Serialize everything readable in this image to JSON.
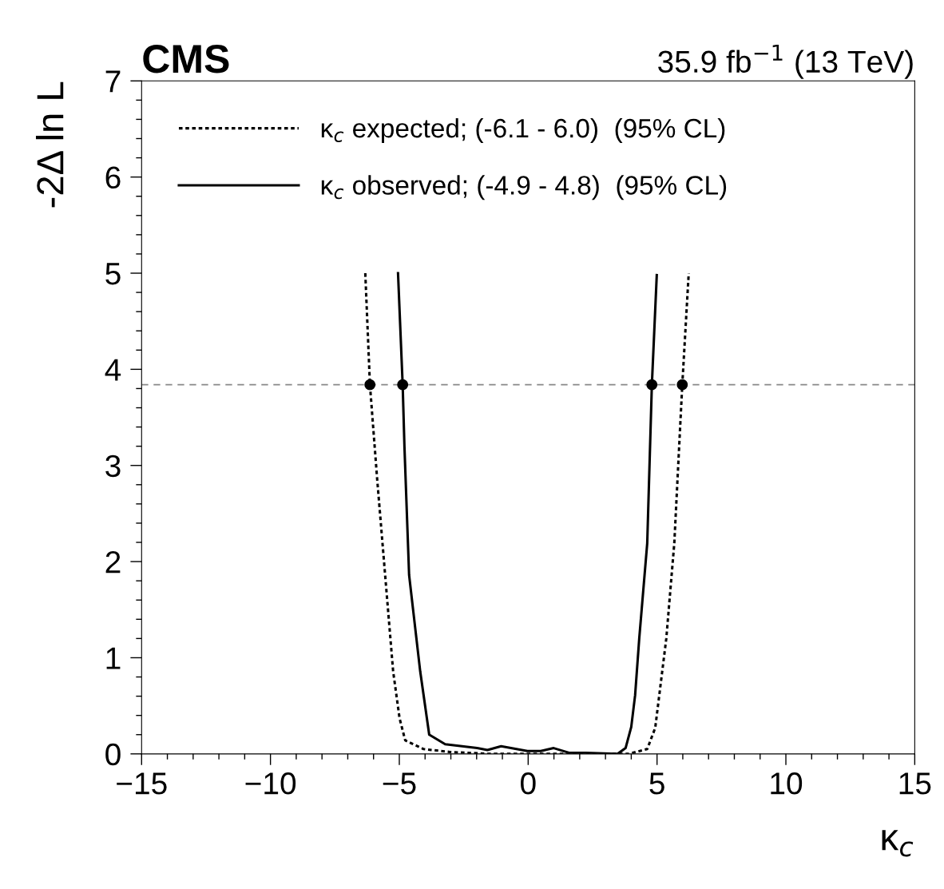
{
  "chart_data": {
    "type": "line",
    "title": "CMS",
    "subtitle": "35.9 fb$^{−1}$ (13 TeV)",
    "xlabel": "κ$_{c}$",
    "ylabel": "-2Δ ln L",
    "xlim": [
      -15,
      15
    ],
    "xticks": [
      {
        "value": -15,
        "label": "−15"
      },
      {
        "value": -10,
        "label": "−10"
      },
      {
        "value": -5,
        "label": "−5"
      },
      0,
      5,
      10,
      15
    ],
    "ylim": [
      0,
      7
    ],
    "yticks": [
      0,
      1,
      2,
      3,
      4,
      5,
      6,
      7
    ],
    "series": [
      {
        "name": "κ$_{c}$ expected; (-6.1 - 6.0)  (95% CL)",
        "color": "#000000",
        "line_style": "dotted",
        "x": [
          -6.32,
          -6.14,
          -5.86,
          -5.55,
          -5.24,
          -4.99,
          -4.77,
          -4.06,
          -3.04,
          -1.49,
          0,
          1.5,
          3.0,
          3.9,
          4.62,
          4.93,
          5.36,
          5.67,
          5.98,
          6.23
        ],
        "values": [
          5.0,
          3.84,
          2.86,
          1.86,
          0.86,
          0.37,
          0.14,
          0.05,
          0.02,
          0.0,
          0.0,
          0.0,
          0.0,
          0.0,
          0.05,
          0.27,
          1.2,
          2.19,
          3.84,
          5.0
        ]
      },
      {
        "name": "κ$_{c}$ observed; (-4.9 - 4.8)  (95% CL)",
        "color": "#000000",
        "line_style": "solid",
        "x": [
          -5.05,
          -4.87,
          -4.8,
          -4.62,
          -4.19,
          -3.84,
          -3.22,
          -1.98,
          -1.58,
          -1.05,
          -0.03,
          0.49,
          0.99,
          1.61,
          2.23,
          3.47,
          3.78,
          4.0,
          4.15,
          4.31,
          4.62,
          4.8,
          4.99
        ],
        "values": [
          5.0,
          3.84,
          3.19,
          1.86,
          0.86,
          0.2,
          0.1,
          0.06,
          0.04,
          0.08,
          0.03,
          0.03,
          0.06,
          0.01,
          0.01,
          0.0,
          0.06,
          0.28,
          0.61,
          1.2,
          2.19,
          3.84,
          4.98
        ]
      },
      {
        "type": "scatter",
        "color": "#000000",
        "marker": "circle",
        "x": [
          -6.14,
          -4.87,
          4.8,
          5.98
        ],
        "values": [
          3.84,
          3.84,
          3.84,
          3.84
        ]
      }
    ],
    "ref_lines": [
      {
        "axis": "y",
        "value": 3.84,
        "color": "#888888",
        "line_style": "dashed"
      }
    ],
    "legend": "top left",
    "grid": false
  }
}
